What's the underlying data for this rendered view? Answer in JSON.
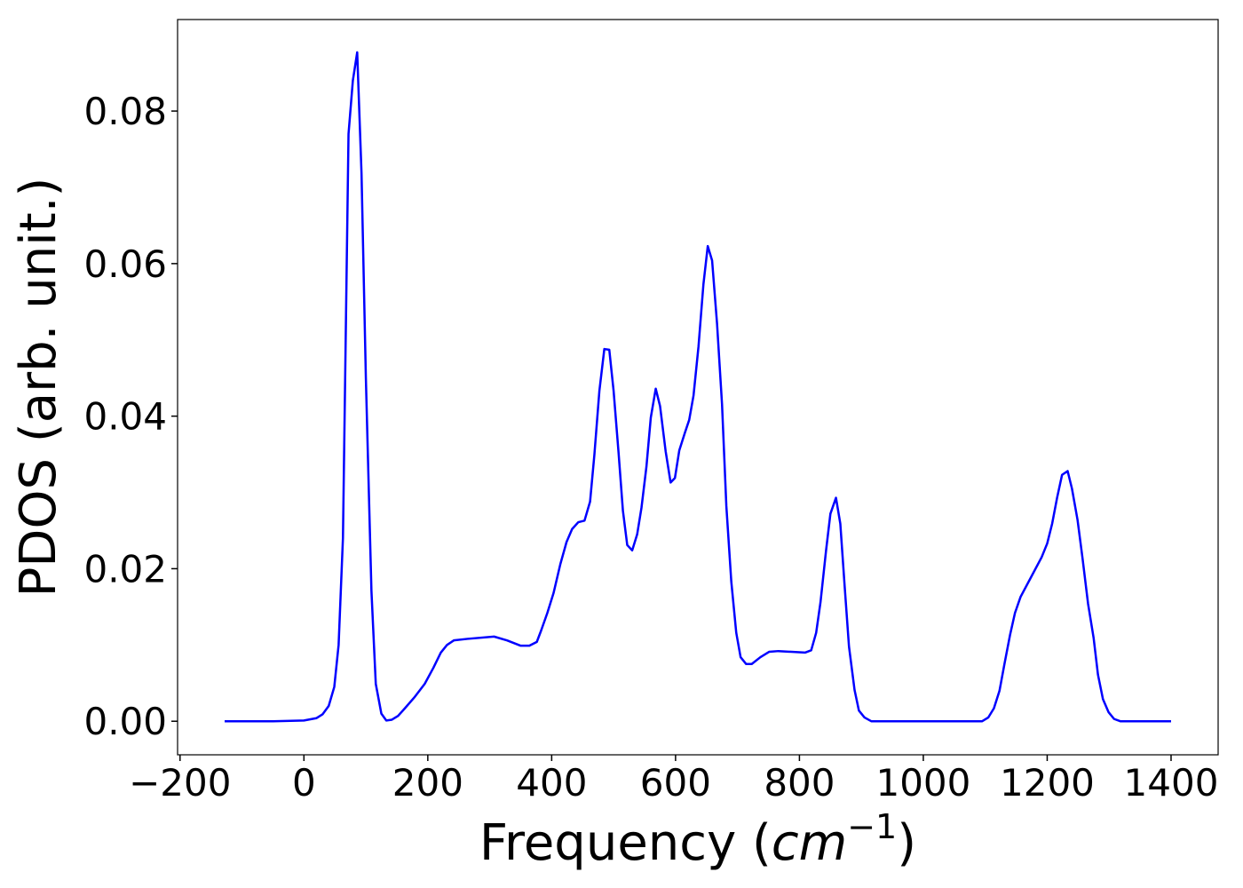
{
  "chart_data": {
    "type": "line",
    "xlabel": {
      "text": "Frequency (",
      "unit": "cm",
      "exponent": "−1",
      "close": ")"
    },
    "ylabel": "PDOS (arb. unit.)",
    "color": "#0000ff",
    "x": [
      -128,
      -50,
      0,
      20,
      30,
      40,
      49,
      56,
      63,
      72,
      79,
      86,
      93,
      100,
      109,
      116,
      125,
      133,
      142,
      152,
      163,
      178,
      195,
      209,
      221,
      231,
      242,
      264,
      307,
      328,
      350,
      364,
      376,
      383,
      393,
      403,
      414,
      424,
      433,
      443,
      453,
      462,
      469,
      477,
      485,
      493,
      500,
      508,
      515,
      522,
      530,
      538,
      545,
      553,
      560,
      568,
      575,
      584,
      592,
      599,
      606,
      615,
      622,
      629,
      637,
      645,
      652,
      659,
      667,
      675,
      682,
      690,
      698,
      705,
      714,
      723,
      737,
      751,
      766,
      787,
      809,
      819,
      827,
      834,
      843,
      850,
      859,
      866,
      873,
      880,
      889,
      896,
      905,
      916,
      1000,
      1095,
      1105,
      1114,
      1123,
      1131,
      1140,
      1148,
      1157,
      1174,
      1191,
      1200,
      1208,
      1216,
      1224,
      1233,
      1240,
      1249,
      1257,
      1266,
      1275,
      1282,
      1290,
      1299,
      1308,
      1318,
      1400
    ],
    "values": [
      0,
      0,
      0.0001,
      0.0004,
      0.0009,
      0.002,
      0.0045,
      0.01,
      0.024,
      0.077,
      0.084,
      0.0877,
      0.0718,
      0.045,
      0.0171,
      0.0049,
      0.001,
      0.0001,
      0.0002,
      0.0007,
      0.0017,
      0.0031,
      0.0049,
      0.007,
      0.009,
      0.01,
      0.0106,
      0.0108,
      0.0111,
      0.0106,
      0.0099,
      0.0099,
      0.0104,
      0.0119,
      0.0142,
      0.0168,
      0.0206,
      0.0235,
      0.0252,
      0.0261,
      0.0263,
      0.0288,
      0.035,
      0.0433,
      0.0488,
      0.0487,
      0.0433,
      0.0352,
      0.0276,
      0.0231,
      0.0224,
      0.0245,
      0.028,
      0.0334,
      0.0398,
      0.0436,
      0.0413,
      0.0354,
      0.0313,
      0.0319,
      0.0355,
      0.0378,
      0.0395,
      0.0427,
      0.0491,
      0.0573,
      0.0623,
      0.0604,
      0.0521,
      0.0416,
      0.0282,
      0.0183,
      0.0116,
      0.0084,
      0.0075,
      0.0075,
      0.0084,
      0.0091,
      0.0092,
      0.0091,
      0.009,
      0.0093,
      0.0116,
      0.0156,
      0.0224,
      0.0272,
      0.0293,
      0.0259,
      0.0177,
      0.0098,
      0.0041,
      0.0014,
      0.0005,
      0,
      0,
      0,
      0.0005,
      0.0017,
      0.004,
      0.0075,
      0.0113,
      0.0142,
      0.0163,
      0.0189,
      0.0215,
      0.0233,
      0.0259,
      0.0293,
      0.0323,
      0.0328,
      0.0305,
      0.0264,
      0.0214,
      0.0154,
      0.0109,
      0.0061,
      0.0029,
      0.0012,
      0.0003,
      0,
      0
    ],
    "xlim": [
      -204,
      1476
    ],
    "ylim": [
      -0.0044,
      0.092
    ],
    "xticks": [
      {
        "value": -200,
        "label": "−200"
      },
      0,
      200,
      400,
      600,
      800,
      1000,
      1200,
      1400
    ],
    "yticks": [
      {
        "value": 0,
        "label": "0.00"
      },
      0.02,
      0.04,
      0.06,
      0.08
    ]
  }
}
